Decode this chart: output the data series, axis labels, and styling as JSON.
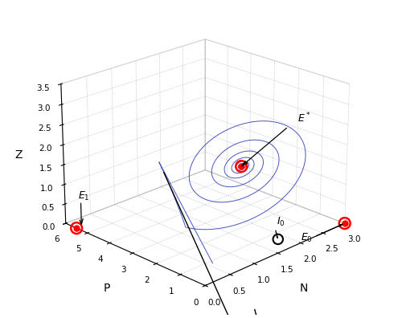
{
  "xlabel": "N",
  "ylabel": "P",
  "zlabel": "Z",
  "xlim": [
    0,
    3
  ],
  "ylim": [
    0,
    6
  ],
  "zlim": [
    0,
    3.5
  ],
  "xticks": [
    0,
    0.5,
    1,
    1.5,
    2,
    2.5,
    3
  ],
  "yticks": [
    0,
    1,
    2,
    3,
    4,
    5,
    6
  ],
  "zticks": [
    0,
    0.5,
    1,
    1.5,
    2,
    2.5,
    3,
    3.5
  ],
  "E_star": [
    1.5,
    1.5,
    1.8
  ],
  "E0": [
    3.0,
    0.0,
    0.0
  ],
  "E1": [
    0.0,
    5.5,
    0.0
  ],
  "I0": [
    1.5,
    0.0,
    0.35
  ],
  "spiral_color": "#3344bb",
  "elev": 20,
  "azim": -135,
  "figsize": [
    5.0,
    3.96
  ],
  "dpi": 100
}
